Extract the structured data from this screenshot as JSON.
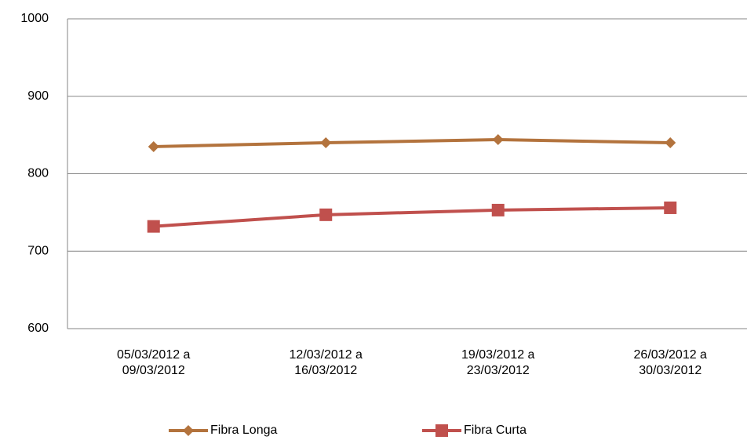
{
  "chart_data": {
    "type": "line",
    "categories": [
      "05/03/2012 a 09/03/2012",
      "12/03/2012 a 16/03/2012",
      "19/03/2012 a 23/03/2012",
      "26/03/2012 a 30/03/2012"
    ],
    "series": [
      {
        "name": "Fibra Longa",
        "color": "#b3733d",
        "marker": "diamond",
        "values": [
          835,
          840,
          844,
          840
        ]
      },
      {
        "name": "Fibra Curta",
        "color": "#c0504d",
        "marker": "square",
        "values": [
          732,
          747,
          753,
          756
        ]
      }
    ],
    "ylim": [
      600,
      1000
    ],
    "yticks": [
      600,
      700,
      800,
      900,
      1000
    ],
    "grid": true,
    "legend": "bottom"
  }
}
